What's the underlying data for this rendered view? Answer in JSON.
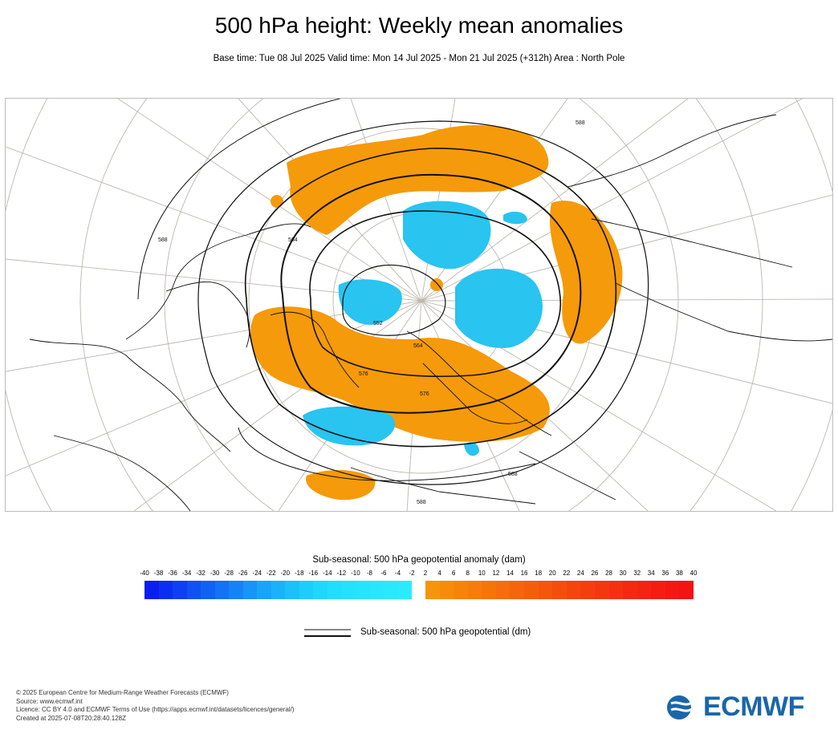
{
  "title": "500 hPa height: Weekly mean anomalies",
  "subtitle": "Base time: Tue 08 Jul 2025 Valid time: Mon 14 Jul 2025 - Mon 21 Jul 2025 (+312h) Area : North Pole",
  "map": {
    "contour_labels": [
      "552",
      "564",
      "564",
      "576",
      "576",
      "588",
      "588",
      "588",
      "588"
    ]
  },
  "colorbar": {
    "title": "Sub-seasonal: 500 hPa geopotential anomaly (dam)",
    "ticks_negative": [
      "-40",
      "-38",
      "-36",
      "-34",
      "-32",
      "-30",
      "-28",
      "-26",
      "-24",
      "-22",
      "-20",
      "-18",
      "-16",
      "-14",
      "-12",
      "-10",
      "-8",
      "-6",
      "-4",
      "-2"
    ],
    "ticks_positive": [
      "2",
      "4",
      "6",
      "8",
      "10",
      "12",
      "14",
      "16",
      "18",
      "20",
      "22",
      "24",
      "26",
      "28",
      "30",
      "32",
      "34",
      "36",
      "38",
      "40"
    ],
    "negative_colors": [
      "#0a1ef0",
      "#0b2ff1",
      "#0d40f2",
      "#0f51f3",
      "#1162f4",
      "#1372f5",
      "#1583f6",
      "#1794f7",
      "#19a4f8",
      "#1ab3f9",
      "#1cc0fa",
      "#1ecdfb",
      "#20d6fc",
      "#22ddfd",
      "#24e1fd",
      "#26e4fe",
      "#28e6fe",
      "#2ae8fe",
      "#2ceafe"
    ],
    "positive_colors": [
      "#f5950a",
      "#f58d0a",
      "#f5850a",
      "#f57d0b",
      "#f5750b",
      "#f56d0c",
      "#f5650c",
      "#f55d0d",
      "#f5550d",
      "#f54d0e",
      "#f5450e",
      "#f53e0f",
      "#f5370f",
      "#f53010",
      "#f52910",
      "#f52311",
      "#f51d11",
      "#f51712",
      "#f51212"
    ],
    "negative_fill": "#29c4f0",
    "positive_fill": "#f59a0a"
  },
  "legend": {
    "contour_label": "Sub-seasonal: 500 hPa geopotential (dm)"
  },
  "footer": {
    "lines": [
      "© 2025 European Centre for Medium-Range Weather Forecasts (ECMWF)",
      "Source: www.ecmwf.int",
      "Licence: CC BY 4.0 and ECMWF Terms of Use (https://apps.ecmwf.int/datasets/licences/general/)",
      "Created at 2025-07-08T20:28:40.128Z"
    ]
  },
  "logo": {
    "text": "ECMWF",
    "color": "#1a66a8"
  }
}
